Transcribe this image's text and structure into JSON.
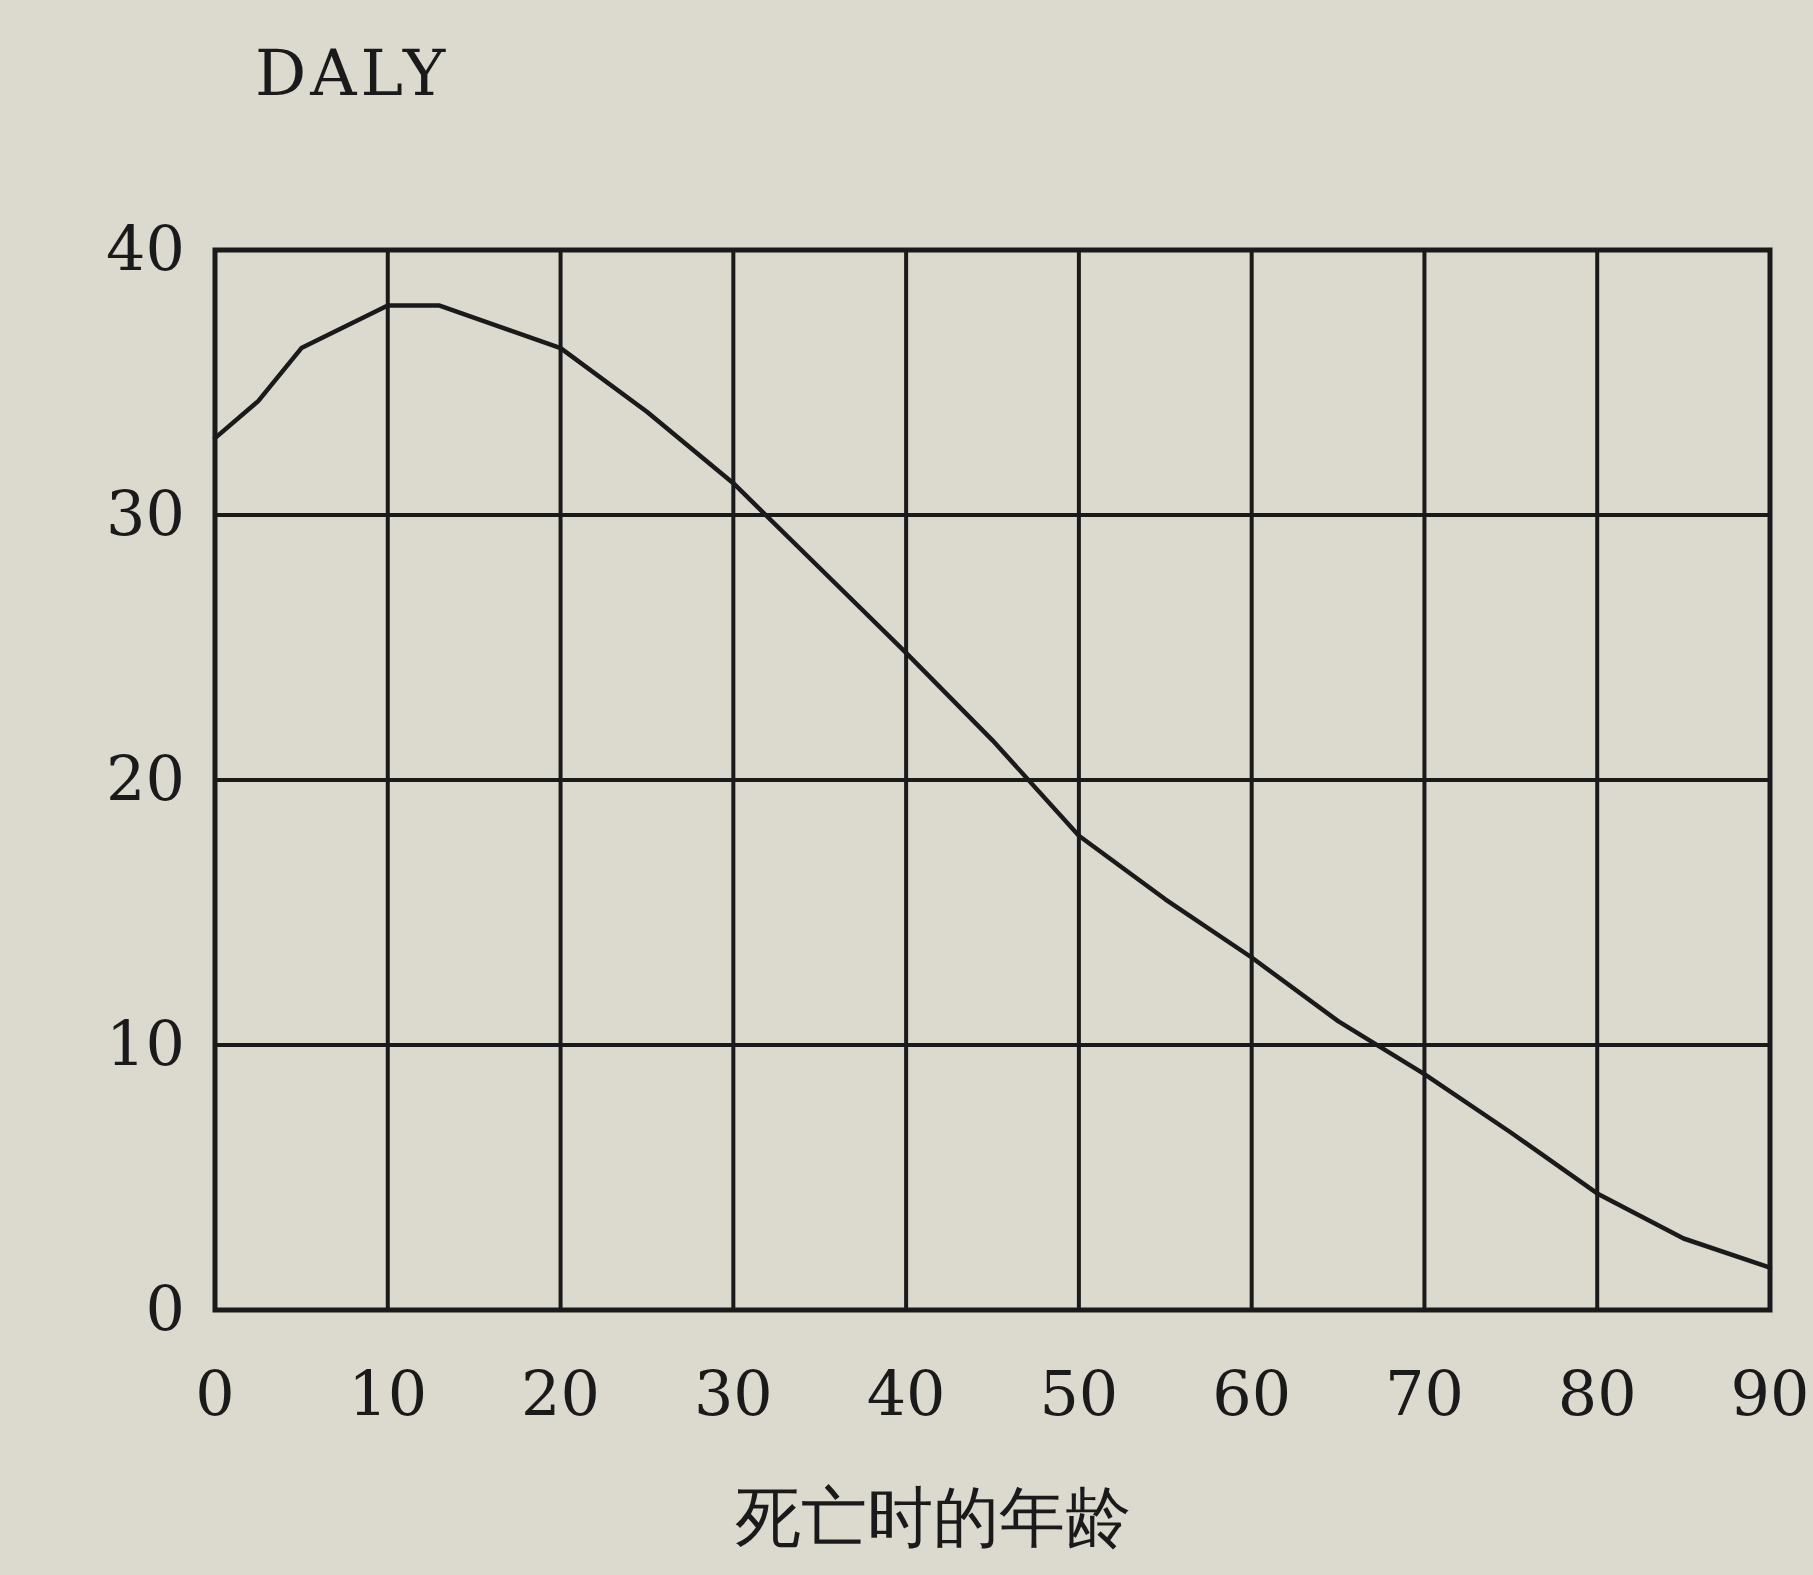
{
  "chart_data": {
    "type": "line",
    "ylabel": "DALY",
    "xlabel": "死亡时的年龄",
    "x": [
      0,
      2.5,
      5,
      10,
      13,
      20,
      25,
      30,
      35,
      40,
      45,
      50,
      55,
      60,
      65,
      70,
      75,
      80,
      85,
      90
    ],
    "values": [
      32.9,
      34.3,
      36.3,
      37.9,
      37.9,
      36.3,
      33.9,
      31.2,
      28.0,
      24.8,
      21.5,
      17.9,
      15.5,
      13.3,
      10.9,
      8.9,
      6.7,
      4.4,
      2.7,
      1.6
    ],
    "color": "#1a1a1a",
    "xlim": [
      0,
      90
    ],
    "ylim": [
      0,
      40
    ],
    "xticks": [
      0,
      10,
      20,
      30,
      40,
      50,
      60,
      70,
      80,
      90
    ],
    "yticks": [
      0,
      10,
      20,
      30,
      40
    ],
    "grid": true,
    "marker": "none",
    "line_style": "solid"
  }
}
